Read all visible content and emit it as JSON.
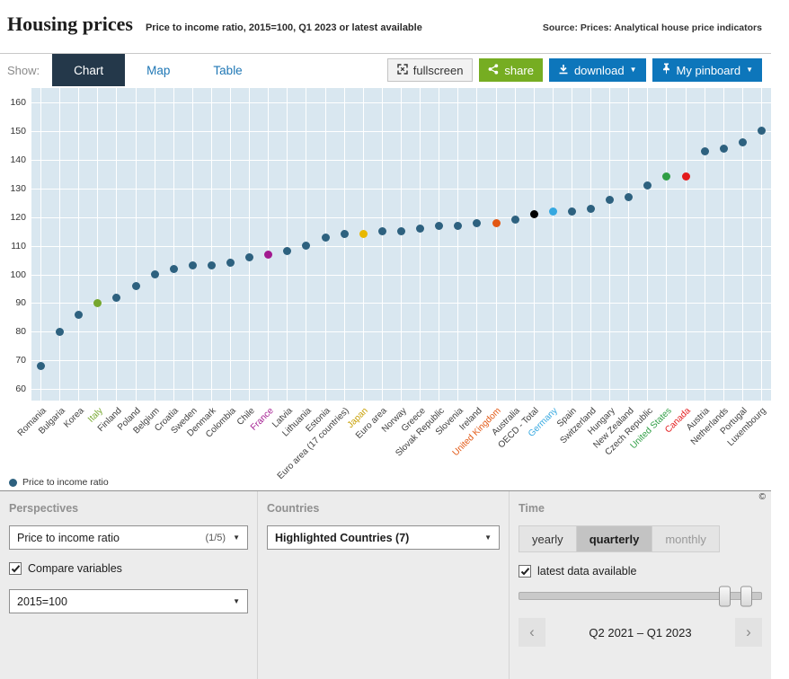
{
  "header": {
    "title": "Housing prices",
    "subtitle": "Price to income ratio, 2015=100, Q1 2023 or latest available",
    "source": "Source: Prices: Analytical house price indicators"
  },
  "tabs": {
    "show_label": "Show:",
    "items": [
      {
        "label": "Chart",
        "active": true
      },
      {
        "label": "Map",
        "active": false
      },
      {
        "label": "Table",
        "active": false
      }
    ]
  },
  "actions": {
    "fullscreen": "fullscreen",
    "share": "share",
    "download": "download",
    "pinboard": "My pinboard"
  },
  "icons": {
    "caret_down": "▼",
    "pager_prev": "‹",
    "pager_next": "›",
    "copyright": "©"
  },
  "legend": {
    "label": "Price to income ratio"
  },
  "chart_data": {
    "type": "scatter",
    "series_name": "Price to income ratio",
    "ylabel": "",
    "xlabel": "",
    "ylim": [
      56,
      165
    ],
    "yticks": [
      60,
      70,
      80,
      90,
      100,
      110,
      120,
      130,
      140,
      150,
      160
    ],
    "grid": "white-on-lightblue",
    "background": "#d9e7f0",
    "default_dot_color": "#2d617f",
    "points": [
      {
        "country": "Romania",
        "value": 68
      },
      {
        "country": "Bulgaria",
        "value": 80
      },
      {
        "country": "Korea",
        "value": 86
      },
      {
        "country": "Italy",
        "value": 90,
        "color": "#76a72e",
        "label_color": "#76a72e"
      },
      {
        "country": "Finland",
        "value": 92
      },
      {
        "country": "Poland",
        "value": 96
      },
      {
        "country": "Belgium",
        "value": 100
      },
      {
        "country": "Croatia",
        "value": 102
      },
      {
        "country": "Sweden",
        "value": 103
      },
      {
        "country": "Denmark",
        "value": 103
      },
      {
        "country": "Colombia",
        "value": 104
      },
      {
        "country": "Chile",
        "value": 106
      },
      {
        "country": "France",
        "value": 107,
        "color": "#a21a8f",
        "label_color": "#a21a8f"
      },
      {
        "country": "Latvia",
        "value": 108
      },
      {
        "country": "Lithuania",
        "value": 110
      },
      {
        "country": "Estonia",
        "value": 113
      },
      {
        "country": "Euro area (17 countries)",
        "value": 114
      },
      {
        "country": "Japan",
        "value": 114,
        "color": "#e8b800",
        "label_color": "#c79e00"
      },
      {
        "country": "Euro area",
        "value": 115
      },
      {
        "country": "Norway",
        "value": 115
      },
      {
        "country": "Greece",
        "value": 116
      },
      {
        "country": "Slovak Republic",
        "value": 117
      },
      {
        "country": "Slovenia",
        "value": 117
      },
      {
        "country": "Ireland",
        "value": 118
      },
      {
        "country": "United Kingdom",
        "value": 118,
        "color": "#e25713",
        "label_color": "#e25713"
      },
      {
        "country": "Australia",
        "value": 119
      },
      {
        "country": "OECD - Total",
        "value": 121,
        "color": "#000000"
      },
      {
        "country": "Germany",
        "value": 122,
        "color": "#35a8e0",
        "label_color": "#35a8e0"
      },
      {
        "country": "Spain",
        "value": 122
      },
      {
        "country": "Switzerland",
        "value": 123
      },
      {
        "country": "Hungary",
        "value": 126
      },
      {
        "country": "New Zealand",
        "value": 127
      },
      {
        "country": "Czech Republic",
        "value": 131
      },
      {
        "country": "United States",
        "value": 134,
        "color": "#2e9e44",
        "label_color": "#2e9e44"
      },
      {
        "country": "Canada",
        "value": 134,
        "color": "#e31a1c",
        "label_color": "#e31a1c"
      },
      {
        "country": "Austria",
        "value": 143
      },
      {
        "country": "Netherlands",
        "value": 144
      },
      {
        "country": "Portugal",
        "value": 146
      },
      {
        "country": "Luxembourg",
        "value": 150
      }
    ]
  },
  "panels": {
    "perspectives": {
      "title": "Perspectives",
      "dropdown1": {
        "value": "Price to income ratio",
        "count": "(1/5)"
      },
      "compare_label": "Compare variables",
      "compare_checked": true,
      "dropdown2": {
        "value": "2015=100"
      }
    },
    "countries": {
      "title": "Countries",
      "dropdown": {
        "value": "Highlighted Countries",
        "count": "(7)"
      }
    },
    "time": {
      "title": "Time",
      "frequency": [
        {
          "label": "yearly",
          "selected": false
        },
        {
          "label": "quarterly",
          "selected": true
        },
        {
          "label": "monthly",
          "selected": false
        }
      ],
      "latest_label": "latest data available",
      "latest_checked": true,
      "range_label": "Q2 2021 – Q1 2023"
    }
  }
}
